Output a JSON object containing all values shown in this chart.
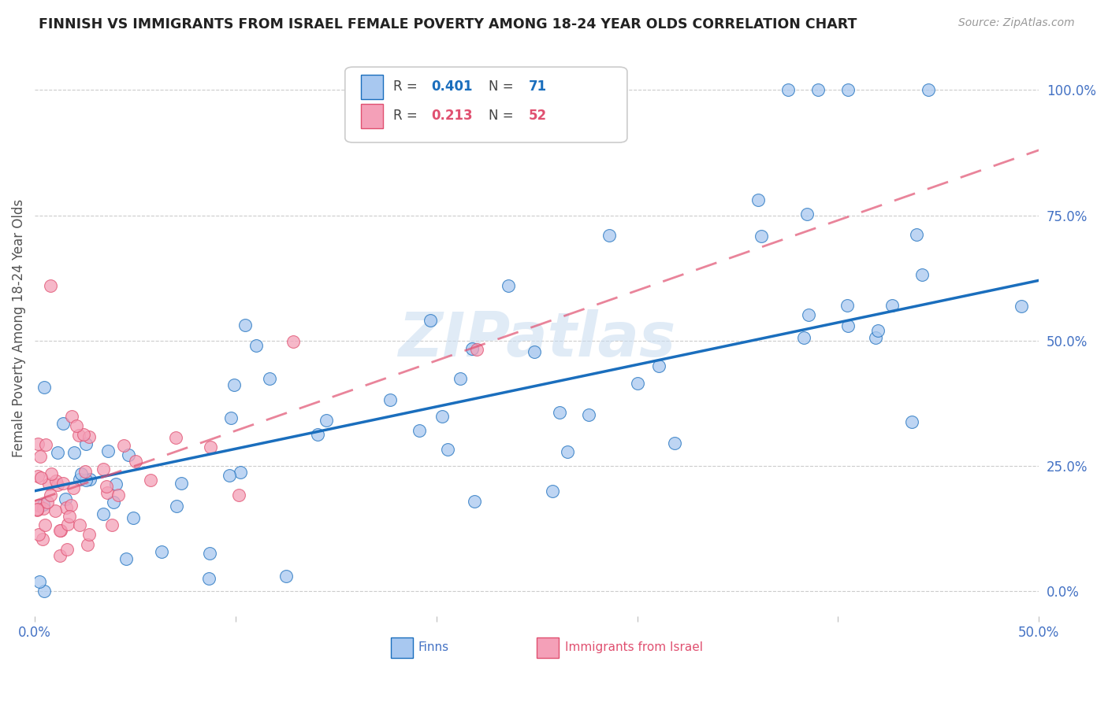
{
  "title": "FINNISH VS IMMIGRANTS FROM ISRAEL FEMALE POVERTY AMONG 18-24 YEAR OLDS CORRELATION CHART",
  "source": "Source: ZipAtlas.com",
  "ylabel": "Female Poverty Among 18-24 Year Olds",
  "xlim": [
    0.0,
    0.5
  ],
  "ylim": [
    -0.05,
    1.1
  ],
  "y_ticks_right": [
    0.0,
    0.25,
    0.5,
    0.75,
    1.0
  ],
  "y_tick_labels_right": [
    "0.0%",
    "25.0%",
    "50.0%",
    "75.0%",
    "100.0%"
  ],
  "finns_R": 0.401,
  "finns_N": 71,
  "israel_R": 0.213,
  "israel_N": 52,
  "finns_color": "#A8C8F0",
  "israel_color": "#F4A0B8",
  "finns_line_color": "#1A6EBD",
  "israel_line_color": "#E05070",
  "watermark": "ZIPatlas",
  "finn_line_y0": 0.2,
  "finn_line_y1": 0.62,
  "israel_line_y0": 0.18,
  "israel_line_y1": 0.88
}
